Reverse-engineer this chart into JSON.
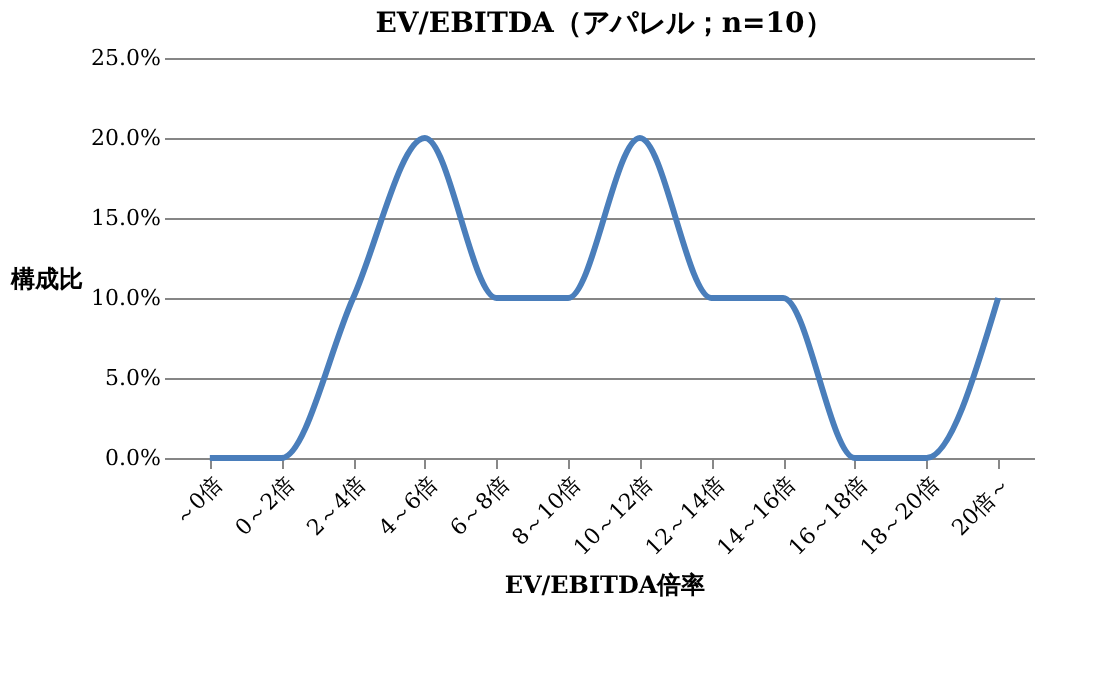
{
  "chart_data": {
    "type": "line",
    "title": "EV/EBITDA（アパレル；n=10）",
    "xlabel": "EV/EBITDA倍率",
    "ylabel": "構成比",
    "categories": [
      "～0倍",
      "0～2倍",
      "2～4倍",
      "4～6倍",
      "6～8倍",
      "8～10倍",
      "10～12倍",
      "12～14倍",
      "14～16倍",
      "16～18倍",
      "18～20倍",
      "20倍～"
    ],
    "series": [
      {
        "color": "#4a7ebb",
        "values": [
          0,
          0,
          10,
          20,
          10,
          10,
          20,
          10,
          10,
          0,
          0,
          10
        ]
      }
    ],
    "ylim": [
      0,
      25
    ],
    "yticks": [
      {
        "value": 0,
        "label": "0.0%"
      },
      {
        "value": 5,
        "label": "5.0%"
      },
      {
        "value": 10,
        "label": "10.0%"
      },
      {
        "value": 15,
        "label": "15.0%"
      },
      {
        "value": 20,
        "label": "20.0%"
      },
      {
        "value": 25,
        "label": "25.0%"
      }
    ],
    "grid": "y",
    "marker": "none",
    "line_style": "solid"
  }
}
